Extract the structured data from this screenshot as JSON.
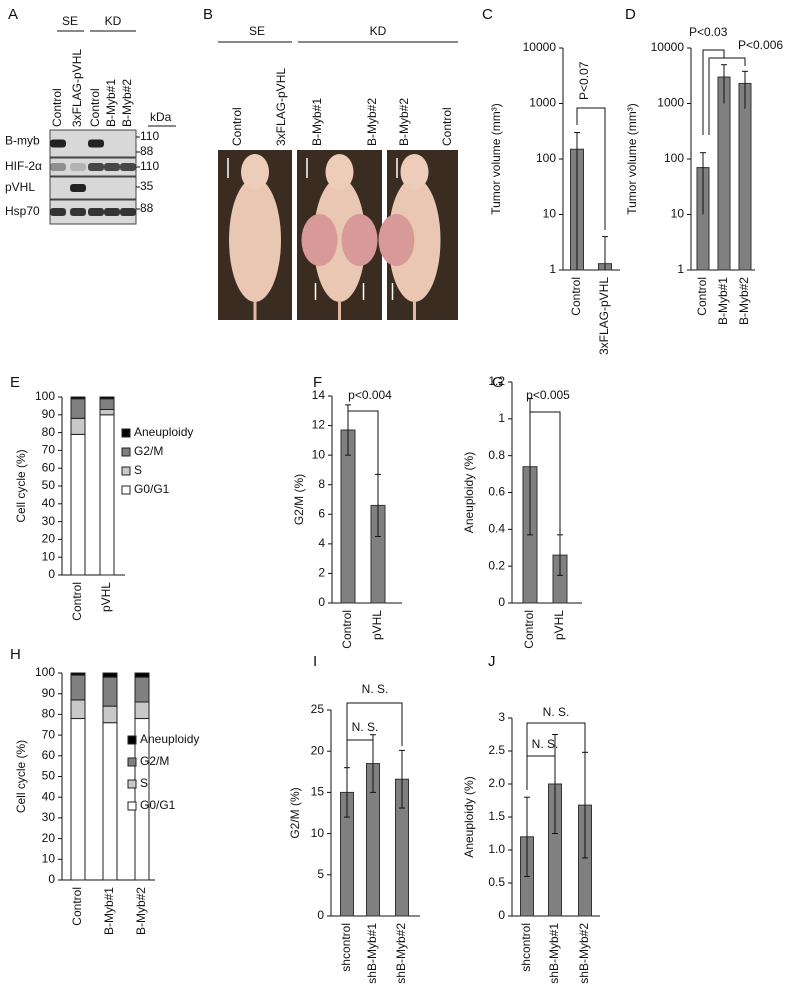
{
  "panel_a": {
    "label": "A",
    "groups": [
      "SE",
      "KD"
    ],
    "lanes": [
      "Control",
      "3xFLAG-pVHL",
      "Control",
      "B-Myb#1",
      "B-Myb#2"
    ],
    "unit": "kDa",
    "rows": [
      "B-myb",
      "HIF-2α",
      "pVHL",
      "Hsp70"
    ],
    "markers": [
      "110",
      "88",
      "110",
      "35",
      "88"
    ]
  },
  "panel_b": {
    "label": "B",
    "groups": [
      "SE",
      "KD"
    ],
    "mice": [
      "Control",
      "3xFLAG-pVHL",
      "B-Myb#1",
      "B-Myb#2",
      "B-Myb#2",
      "Control"
    ]
  },
  "chart_data": [
    {
      "type": "bar",
      "panel": "C",
      "log": true,
      "ylabel": "Tumor volume (mm³)",
      "categories": [
        "Control",
        "3xFLAG-pVHL"
      ],
      "values": [
        150,
        1.3
      ],
      "errors": [
        150,
        2.7
      ],
      "color": "#808080",
      "ylim": [
        1,
        10000
      ],
      "yticks": [
        1,
        10,
        100,
        1000,
        10000
      ],
      "annotations": [
        "P<0.07"
      ]
    },
    {
      "type": "bar",
      "panel": "D",
      "log": true,
      "ylabel": "Tumor volume (mm³)",
      "categories": [
        "Control",
        "B-Myb#1",
        "B-Myb#2"
      ],
      "values": [
        70,
        3000,
        2300
      ],
      "errors": [
        60,
        2000,
        1500
      ],
      "color": "#808080",
      "ylim": [
        1,
        10000
      ],
      "yticks": [
        1,
        10,
        100,
        1000,
        10000
      ],
      "annotations": [
        "P<0.03",
        "P<0.006"
      ]
    },
    {
      "type": "stacked_bar",
      "panel": "E",
      "ylabel": "Cell cycle (%)",
      "categories": [
        "Control",
        "pVHL"
      ],
      "series": [
        {
          "name": "G0/G1",
          "color": "#ffffff",
          "values": [
            79,
            90
          ]
        },
        {
          "name": "S",
          "color": "#c8c8c8",
          "values": [
            9,
            3
          ]
        },
        {
          "name": "G2/M",
          "color": "#808080",
          "values": [
            11,
            6
          ]
        },
        {
          "name": "Aneuploidy",
          "color": "#000000",
          "values": [
            1,
            1
          ]
        }
      ],
      "ylim": [
        0,
        100
      ],
      "yticks": [
        0,
        10,
        20,
        30,
        40,
        50,
        60,
        70,
        80,
        90,
        100
      ]
    },
    {
      "type": "bar",
      "panel": "F",
      "ylabel": "G2/M (%)",
      "categories": [
        "Control",
        "pVHL"
      ],
      "values": [
        11.7,
        6.6
      ],
      "errors": [
        1.7,
        2.1
      ],
      "color": "#808080",
      "ylim": [
        0,
        14
      ],
      "yticks": [
        0,
        2,
        4,
        6,
        8,
        10,
        12,
        14
      ],
      "annotations": [
        "p<0.004"
      ]
    },
    {
      "type": "bar",
      "panel": "G",
      "ylabel": "Aneuploidy (%)",
      "categories": [
        "Control",
        "pVHL"
      ],
      "values": [
        0.74,
        0.26
      ],
      "errors": [
        0.37,
        0.11
      ],
      "color": "#808080",
      "ylim": [
        0,
        1.2
      ],
      "yticks": [
        0,
        0.2,
        0.4,
        0.6,
        0.8,
        1,
        1.2
      ],
      "annotations": [
        "p<0.005"
      ]
    },
    {
      "type": "stacked_bar",
      "panel": "H",
      "ylabel": "Cell cycle (%)",
      "categories": [
        "Control",
        "B-Myb#1",
        "B-Myb#2"
      ],
      "series": [
        {
          "name": "G0/G1",
          "color": "#ffffff",
          "values": [
            78,
            76,
            78
          ]
        },
        {
          "name": "S",
          "color": "#c8c8c8",
          "values": [
            9,
            8,
            8
          ]
        },
        {
          "name": "G2/M",
          "color": "#808080",
          "values": [
            12,
            14,
            12
          ]
        },
        {
          "name": "Aneuploidy",
          "color": "#000000",
          "values": [
            1,
            2,
            2
          ]
        }
      ],
      "ylim": [
        0,
        100
      ],
      "yticks": [
        0,
        10,
        20,
        30,
        40,
        50,
        60,
        70,
        80,
        90,
        100
      ]
    },
    {
      "type": "bar",
      "panel": "I",
      "ylabel": "G2/M (%)",
      "categories": [
        "shcontrol",
        "shB-Myb#1",
        "shB-Myb#2"
      ],
      "values": [
        15,
        18.5,
        16.6
      ],
      "errors": [
        3,
        3.5,
        3.5
      ],
      "color": "#808080",
      "ylim": [
        0,
        25
      ],
      "yticks": [
        0,
        5,
        10,
        15,
        20,
        25
      ],
      "annotations": [
        "N. S.",
        "N. S."
      ]
    },
    {
      "type": "bar",
      "panel": "J",
      "ylabel": "Aneuploidy (%)",
      "categories": [
        "shcontrol",
        "shB-Myb#1",
        "shB-Myb#2"
      ],
      "values": [
        1.2,
        2.0,
        1.68
      ],
      "errors": [
        0.6,
        0.75,
        0.8
      ],
      "color": "#808080",
      "ylim": [
        0,
        3
      ],
      "yticks": [
        0,
        0.5,
        {
          "value": 1,
          "label": "1.0"
        },
        1.5,
        {
          "value": 2,
          "label": "2.0"
        },
        2.5,
        3
      ],
      "annotations": [
        "N. S.",
        "N. S."
      ]
    }
  ]
}
